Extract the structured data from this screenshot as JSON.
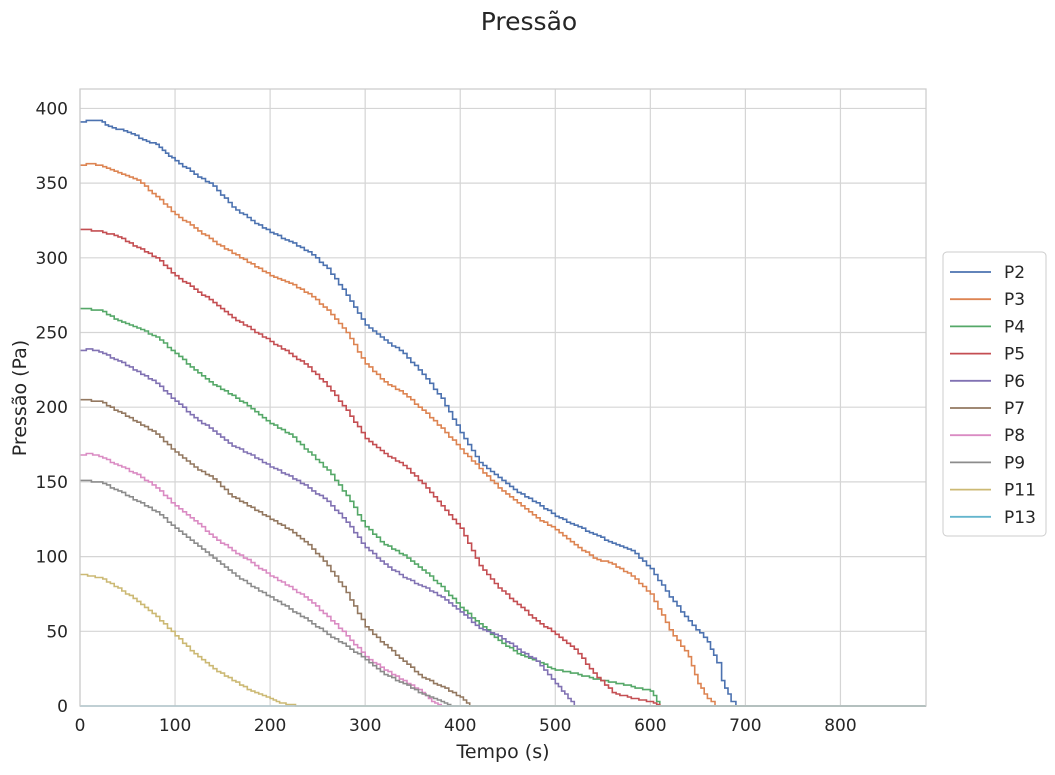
{
  "chart_data": {
    "type": "line",
    "title": "Pressão",
    "xlabel": "Tempo (s)",
    "ylabel": "Pressão (Pa)",
    "xlim": [
      0,
      890
    ],
    "ylim": [
      0,
      413
    ],
    "xticks": [
      0,
      100,
      200,
      300,
      400,
      500,
      600,
      700,
      800
    ],
    "yticks": [
      0,
      50,
      100,
      150,
      200,
      250,
      300,
      350,
      400
    ],
    "grid": true,
    "legend_position": "right-center",
    "series": [
      {
        "name": "P2",
        "color": "#4c72b0",
        "points": [
          [
            0,
            391
          ],
          [
            10,
            392
          ],
          [
            20,
            392
          ],
          [
            30,
            388
          ],
          [
            50,
            384
          ],
          [
            70,
            378
          ],
          [
            80,
            376
          ],
          [
            90,
            370
          ],
          [
            100,
            365
          ],
          [
            120,
            356
          ],
          [
            140,
            348
          ],
          [
            160,
            334
          ],
          [
            180,
            325
          ],
          [
            200,
            317
          ],
          [
            220,
            311
          ],
          [
            240,
            304
          ],
          [
            260,
            293
          ],
          [
            280,
            275
          ],
          [
            300,
            255
          ],
          [
            320,
            245
          ],
          [
            340,
            236
          ],
          [
            360,
            222
          ],
          [
            380,
            206
          ],
          [
            400,
            183
          ],
          [
            420,
            163
          ],
          [
            440,
            153
          ],
          [
            460,
            143
          ],
          [
            480,
            136
          ],
          [
            500,
            127
          ],
          [
            520,
            121
          ],
          [
            540,
            115
          ],
          [
            560,
            109
          ],
          [
            580,
            104
          ],
          [
            600,
            92
          ],
          [
            620,
            73
          ],
          [
            640,
            57
          ],
          [
            660,
            43
          ],
          [
            670,
            29
          ],
          [
            675,
            17
          ],
          [
            685,
            3
          ],
          [
            690,
            0
          ],
          [
            890,
            0
          ]
        ]
      },
      {
        "name": "P3",
        "color": "#dd8452",
        "points": [
          [
            0,
            362
          ],
          [
            10,
            363
          ],
          [
            20,
            362
          ],
          [
            40,
            357
          ],
          [
            60,
            352
          ],
          [
            80,
            341
          ],
          [
            100,
            329
          ],
          [
            120,
            320
          ],
          [
            140,
            311
          ],
          [
            160,
            303
          ],
          [
            180,
            296
          ],
          [
            200,
            288
          ],
          [
            220,
            283
          ],
          [
            240,
            276
          ],
          [
            260,
            265
          ],
          [
            280,
            250
          ],
          [
            300,
            229
          ],
          [
            320,
            217
          ],
          [
            340,
            209
          ],
          [
            360,
            198
          ],
          [
            380,
            186
          ],
          [
            400,
            172
          ],
          [
            420,
            159
          ],
          [
            440,
            146
          ],
          [
            460,
            136
          ],
          [
            480,
            126
          ],
          [
            500,
            118
          ],
          [
            520,
            108
          ],
          [
            540,
            99
          ],
          [
            560,
            95
          ],
          [
            580,
            87
          ],
          [
            600,
            75
          ],
          [
            620,
            51
          ],
          [
            640,
            33
          ],
          [
            650,
            15
          ],
          [
            660,
            5
          ],
          [
            668,
            0
          ],
          [
            890,
            0
          ]
        ]
      },
      {
        "name": "P4",
        "color": "#55a868",
        "points": [
          [
            0,
            266
          ],
          [
            20,
            265
          ],
          [
            40,
            258
          ],
          [
            60,
            253
          ],
          [
            80,
            247
          ],
          [
            100,
            236
          ],
          [
            120,
            225
          ],
          [
            140,
            215
          ],
          [
            160,
            208
          ],
          [
            180,
            199
          ],
          [
            200,
            189
          ],
          [
            220,
            182
          ],
          [
            240,
            170
          ],
          [
            260,
            158
          ],
          [
            280,
            141
          ],
          [
            300,
            120
          ],
          [
            320,
            108
          ],
          [
            340,
            101
          ],
          [
            360,
            91
          ],
          [
            380,
            80
          ],
          [
            400,
            66
          ],
          [
            420,
            55
          ],
          [
            440,
            44
          ],
          [
            460,
            35
          ],
          [
            480,
            30
          ],
          [
            500,
            24
          ],
          [
            520,
            22
          ],
          [
            540,
            18
          ],
          [
            560,
            16
          ],
          [
            580,
            13
          ],
          [
            600,
            10
          ],
          [
            610,
            0
          ],
          [
            890,
            0
          ]
        ]
      },
      {
        "name": "P5",
        "color": "#c44e52",
        "points": [
          [
            0,
            319
          ],
          [
            20,
            318
          ],
          [
            40,
            314
          ],
          [
            60,
            307
          ],
          [
            80,
            300
          ],
          [
            100,
            288
          ],
          [
            120,
            279
          ],
          [
            140,
            270
          ],
          [
            160,
            260
          ],
          [
            180,
            252
          ],
          [
            200,
            244
          ],
          [
            220,
            236
          ],
          [
            240,
            227
          ],
          [
            260,
            214
          ],
          [
            280,
            198
          ],
          [
            300,
            179
          ],
          [
            320,
            169
          ],
          [
            340,
            161
          ],
          [
            360,
            149
          ],
          [
            380,
            134
          ],
          [
            400,
            119
          ],
          [
            420,
            94
          ],
          [
            440,
            79
          ],
          [
            460,
            68
          ],
          [
            480,
            57
          ],
          [
            500,
            48
          ],
          [
            520,
            38
          ],
          [
            540,
            22
          ],
          [
            560,
            9
          ],
          [
            580,
            5
          ],
          [
            600,
            3
          ],
          [
            610,
            0
          ],
          [
            890,
            0
          ]
        ]
      },
      {
        "name": "P6",
        "color": "#8172b3",
        "points": [
          [
            0,
            238
          ],
          [
            10,
            239
          ],
          [
            20,
            237
          ],
          [
            40,
            231
          ],
          [
            60,
            224
          ],
          [
            80,
            216
          ],
          [
            100,
            204
          ],
          [
            120,
            193
          ],
          [
            140,
            184
          ],
          [
            160,
            174
          ],
          [
            180,
            168
          ],
          [
            200,
            160
          ],
          [
            220,
            154
          ],
          [
            240,
            146
          ],
          [
            260,
            137
          ],
          [
            280,
            123
          ],
          [
            300,
            106
          ],
          [
            320,
            95
          ],
          [
            340,
            86
          ],
          [
            360,
            80
          ],
          [
            380,
            73
          ],
          [
            400,
            63
          ],
          [
            420,
            52
          ],
          [
            440,
            47
          ],
          [
            460,
            38
          ],
          [
            480,
            30
          ],
          [
            500,
            15
          ],
          [
            510,
            8
          ],
          [
            520,
            0
          ],
          [
            890,
            0
          ]
        ]
      },
      {
        "name": "P7",
        "color": "#937860",
        "points": [
          [
            0,
            205
          ],
          [
            20,
            204
          ],
          [
            40,
            197
          ],
          [
            60,
            190
          ],
          [
            80,
            182
          ],
          [
            100,
            170
          ],
          [
            120,
            160
          ],
          [
            140,
            152
          ],
          [
            160,
            140
          ],
          [
            180,
            133
          ],
          [
            200,
            125
          ],
          [
            220,
            118
          ],
          [
            240,
            108
          ],
          [
            260,
            94
          ],
          [
            280,
            76
          ],
          [
            300,
            53
          ],
          [
            320,
            41
          ],
          [
            340,
            30
          ],
          [
            360,
            19
          ],
          [
            380,
            13
          ],
          [
            400,
            6
          ],
          [
            410,
            0
          ],
          [
            890,
            0
          ]
        ]
      },
      {
        "name": "P8",
        "color": "#da8bc3",
        "points": [
          [
            0,
            168
          ],
          [
            10,
            169
          ],
          [
            20,
            167
          ],
          [
            40,
            161
          ],
          [
            60,
            155
          ],
          [
            80,
            146
          ],
          [
            100,
            134
          ],
          [
            120,
            124
          ],
          [
            140,
            113
          ],
          [
            160,
            104
          ],
          [
            180,
            96
          ],
          [
            200,
            87
          ],
          [
            220,
            80
          ],
          [
            240,
            71
          ],
          [
            260,
            60
          ],
          [
            280,
            47
          ],
          [
            300,
            33
          ],
          [
            320,
            24
          ],
          [
            340,
            17
          ],
          [
            360,
            9
          ],
          [
            370,
            3
          ],
          [
            380,
            0
          ],
          [
            890,
            0
          ]
        ]
      },
      {
        "name": "P9",
        "color": "#8c8c8c",
        "points": [
          [
            0,
            151
          ],
          [
            20,
            150
          ],
          [
            40,
            144
          ],
          [
            60,
            137
          ],
          [
            80,
            130
          ],
          [
            100,
            119
          ],
          [
            120,
            109
          ],
          [
            140,
            99
          ],
          [
            160,
            89
          ],
          [
            180,
            80
          ],
          [
            200,
            73
          ],
          [
            220,
            65
          ],
          [
            240,
            57
          ],
          [
            260,
            48
          ],
          [
            280,
            40
          ],
          [
            300,
            31
          ],
          [
            320,
            21
          ],
          [
            340,
            15
          ],
          [
            360,
            8
          ],
          [
            380,
            3
          ],
          [
            390,
            0
          ],
          [
            890,
            0
          ]
        ]
      },
      {
        "name": "P11",
        "color": "#ccb974",
        "points": [
          [
            0,
            88
          ],
          [
            20,
            86
          ],
          [
            40,
            79
          ],
          [
            60,
            70
          ],
          [
            80,
            60
          ],
          [
            100,
            47
          ],
          [
            120,
            35
          ],
          [
            140,
            25
          ],
          [
            160,
            17
          ],
          [
            180,
            10
          ],
          [
            200,
            5
          ],
          [
            210,
            2
          ],
          [
            220,
            1
          ],
          [
            230,
            0
          ],
          [
            890,
            0
          ]
        ]
      },
      {
        "name": "P13",
        "color": "#64b5cd",
        "points": [
          [
            0,
            0
          ],
          [
            890,
            0
          ]
        ]
      }
    ]
  }
}
